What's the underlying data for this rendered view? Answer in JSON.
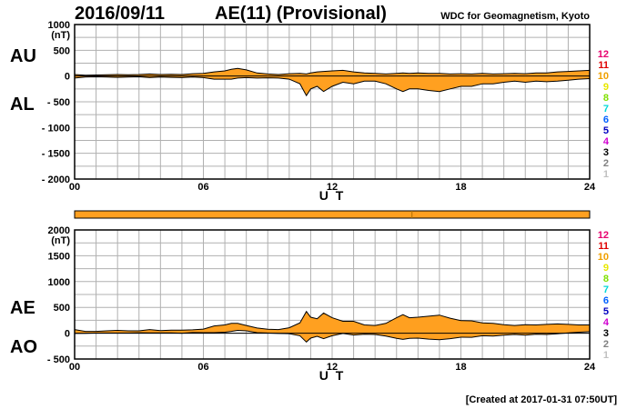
{
  "header": {
    "date": "2016/09/11",
    "title": "AE(11) (Provisional)",
    "organization": "WDC for Geomagnetism, Kyoto"
  },
  "footer": {
    "created": "[Created at 2017-01-31 07:50UT]"
  },
  "levels": {
    "labels": [
      "12",
      "11",
      "10",
      "9",
      "8",
      "7",
      "6",
      "5",
      "4",
      "3",
      "2",
      "1"
    ],
    "colors": [
      "#e8006e",
      "#e00000",
      "#f0a000",
      "#e8e800",
      "#80e000",
      "#00d8d8",
      "#0060ff",
      "#0000c0",
      "#d000d0",
      "#000000",
      "#808080",
      "#c0c0c0"
    ]
  },
  "colors": {
    "fill": "#ffa020",
    "line": "#000000",
    "grid": "#b0b0b0",
    "bar": "#ffa020"
  },
  "chart_data": [
    {
      "type": "area",
      "name": "AU/AL",
      "y_labels": [
        "AU",
        "AL"
      ],
      "unit": "(nT)",
      "xlabel": "U T",
      "xlim": [
        0,
        24
      ],
      "x_ticks": [
        "00",
        "06",
        "12",
        "18",
        "24"
      ],
      "ylim": [
        -2000,
        1000
      ],
      "y_ticks": [
        "1000",
        "500",
        "0",
        "- 500",
        "- 1000",
        "- 1500",
        "- 2000"
      ],
      "grid": true,
      "series": [
        {
          "name": "AU",
          "x": [
            0,
            0.5,
            1,
            1.5,
            2,
            2.5,
            3,
            3.5,
            4,
            4.5,
            5,
            5.5,
            6,
            6.5,
            7,
            7.3,
            7.6,
            8,
            8.5,
            9,
            9.5,
            10,
            10.5,
            10.8,
            11,
            11.3,
            11.6,
            12,
            12.5,
            13,
            13.5,
            14,
            14.5,
            15,
            15.3,
            15.6,
            16,
            16.5,
            17,
            17.5,
            18,
            18.5,
            19,
            19.5,
            20,
            20.5,
            21,
            21.5,
            22,
            22.5,
            23,
            23.5,
            24
          ],
          "values": [
            30,
            15,
            20,
            25,
            30,
            25,
            30,
            40,
            30,
            35,
            30,
            45,
            50,
            80,
            100,
            130,
            150,
            120,
            60,
            40,
            30,
            45,
            50,
            40,
            60,
            80,
            90,
            100,
            110,
            80,
            60,
            50,
            40,
            50,
            60,
            50,
            60,
            50,
            50,
            40,
            45,
            40,
            50,
            40,
            45,
            50,
            45,
            60,
            60,
            80,
            90,
            100,
            110
          ]
        },
        {
          "name": "AL",
          "x": [
            0,
            0.5,
            1,
            1.5,
            2,
            2.5,
            3,
            3.5,
            4,
            4.5,
            5,
            5.5,
            6,
            6.5,
            7,
            7.3,
            7.6,
            8,
            8.5,
            9,
            9.5,
            10,
            10.5,
            10.8,
            11,
            11.3,
            11.6,
            12,
            12.5,
            13,
            13.5,
            14,
            14.5,
            15,
            15.3,
            15.6,
            16,
            16.5,
            17,
            17.5,
            18,
            18.5,
            19,
            19.5,
            20,
            20.5,
            21,
            21.5,
            22,
            22.5,
            23,
            23.5,
            24
          ],
          "values": [
            -40,
            -20,
            -15,
            -20,
            -25,
            -20,
            -15,
            -30,
            -20,
            -25,
            -30,
            -20,
            -30,
            -60,
            -60,
            -60,
            -40,
            -30,
            -40,
            -35,
            -40,
            -60,
            -150,
            -380,
            -250,
            -200,
            -300,
            -200,
            -120,
            -150,
            -100,
            -100,
            -150,
            -250,
            -300,
            -250,
            -250,
            -280,
            -300,
            -250,
            -200,
            -200,
            -150,
            -150,
            -120,
            -100,
            -120,
            -100,
            -110,
            -100,
            -80,
            -60,
            -50
          ]
        }
      ]
    },
    {
      "type": "area",
      "name": "AE/AO",
      "y_labels": [
        "AE",
        "AO"
      ],
      "unit": "(nT)",
      "xlabel": "U T",
      "xlim": [
        0,
        24
      ],
      "x_ticks": [
        "00",
        "06",
        "12",
        "18",
        "24"
      ],
      "ylim": [
        -500,
        2000
      ],
      "y_ticks": [
        "2000",
        "1500",
        "1000",
        "500",
        "0",
        "- 500"
      ],
      "grid": true,
      "series": [
        {
          "name": "AE",
          "x": [
            0,
            0.5,
            1,
            1.5,
            2,
            2.5,
            3,
            3.5,
            4,
            4.5,
            5,
            5.5,
            6,
            6.5,
            7,
            7.3,
            7.6,
            8,
            8.5,
            9,
            9.5,
            10,
            10.5,
            10.8,
            11,
            11.3,
            11.6,
            12,
            12.5,
            13,
            13.5,
            14,
            14.5,
            15,
            15.3,
            15.6,
            16,
            16.5,
            17,
            17.5,
            18,
            18.5,
            19,
            19.5,
            20,
            20.5,
            21,
            21.5,
            22,
            22.5,
            23,
            23.5,
            24
          ],
          "values": [
            70,
            35,
            35,
            45,
            55,
            45,
            45,
            70,
            50,
            60,
            60,
            65,
            80,
            140,
            160,
            190,
            190,
            150,
            100,
            75,
            70,
            105,
            200,
            420,
            310,
            280,
            390,
            300,
            230,
            230,
            160,
            150,
            190,
            300,
            360,
            300,
            310,
            330,
            350,
            290,
            245,
            240,
            200,
            190,
            165,
            150,
            165,
            160,
            170,
            180,
            170,
            160,
            160
          ]
        },
        {
          "name": "AO",
          "x": [
            0,
            0.5,
            1,
            1.5,
            2,
            2.5,
            3,
            3.5,
            4,
            4.5,
            5,
            5.5,
            6,
            6.5,
            7,
            7.3,
            7.6,
            8,
            8.5,
            9,
            9.5,
            10,
            10.5,
            10.8,
            11,
            11.3,
            11.6,
            12,
            12.5,
            13,
            13.5,
            14,
            14.5,
            15,
            15.3,
            15.6,
            16,
            16.5,
            17,
            17.5,
            18,
            18.5,
            19,
            19.5,
            20,
            20.5,
            21,
            21.5,
            22,
            22.5,
            23,
            23.5,
            24
          ],
          "values": [
            -5,
            -3,
            3,
            3,
            3,
            3,
            8,
            5,
            5,
            5,
            0,
            13,
            10,
            10,
            20,
            35,
            55,
            45,
            10,
            3,
            -5,
            -8,
            -50,
            -170,
            -95,
            -60,
            -105,
            -50,
            -5,
            -35,
            -20,
            -25,
            -55,
            -100,
            -120,
            -100,
            -95,
            -115,
            -125,
            -105,
            -78,
            -80,
            -50,
            -55,
            -38,
            -25,
            -38,
            -20,
            -25,
            -10,
            5,
            20,
            30
          ]
        }
      ]
    }
  ]
}
